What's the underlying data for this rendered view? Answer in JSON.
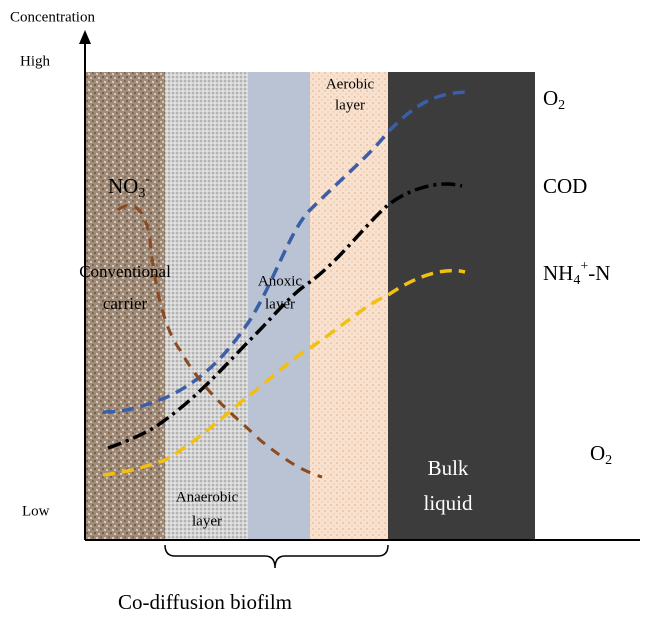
{
  "axis": {
    "y_label": "Concentration",
    "high": "High",
    "low": "Low"
  },
  "regions": {
    "carrier": [
      "Conventional",
      "carrier"
    ],
    "anaerobic": [
      "Anaerobic",
      "layer"
    ],
    "anoxic": [
      "Anoxic",
      "layer"
    ],
    "aerobic": [
      "Aerobic",
      "layer"
    ],
    "bulk": [
      "Bulk",
      "liquid"
    ]
  },
  "curves": {
    "no3": {
      "base": "NO",
      "sub": "3",
      "sup": "-"
    },
    "o2": {
      "base": "O",
      "sub": "2"
    },
    "cod": {
      "base": "COD"
    },
    "nh4": {
      "base": "NH",
      "sub": "4",
      "sup": "+",
      "tail": "-N"
    },
    "o2_bulk": {
      "base": "O",
      "sub": "2"
    }
  },
  "brace_label": "Co-diffusion biofilm"
}
